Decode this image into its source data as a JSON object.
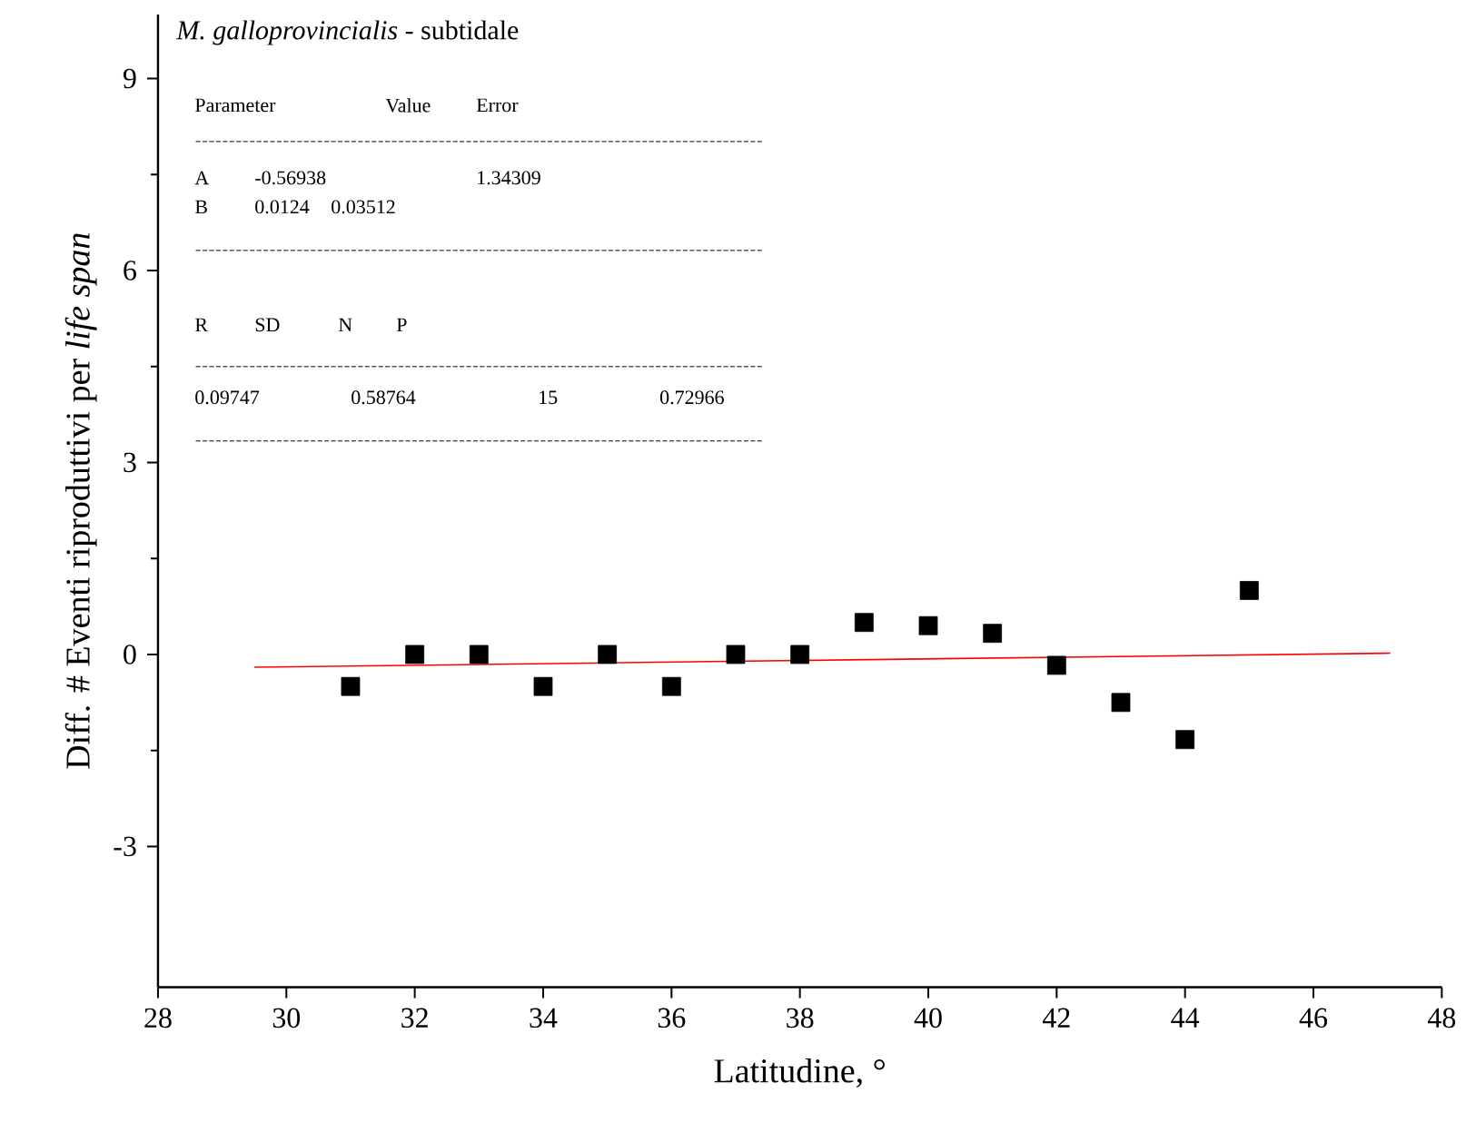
{
  "chart_data": {
    "type": "scatter",
    "title": "*M. galloprovincialis* - subtidale",
    "xlabel": "Latitudine, °",
    "ylabel": "Diff. # Eventi riproduttivi per *life span*",
    "annotations": [
      "Parameter",
      "Value",
      "Error",
      "A",
      "-0.56938",
      "1.34309",
      "B",
      "0.0124",
      "0.03512",
      "R",
      "SD",
      "N",
      "P",
      "0.09747",
      "0.58764",
      "15",
      "0.72966"
    ],
    "xlim": [
      28,
      48
    ],
    "ylim": [
      -5.2,
      10
    ],
    "xticks": [
      28,
      30,
      32,
      34,
      36,
      38,
      40,
      42,
      44,
      46,
      48
    ],
    "yticks": [
      -3,
      0,
      3,
      6,
      9
    ],
    "grid": false,
    "legend": false,
    "marker": "square",
    "series": [
      {
        "type": "scatter",
        "color": "#000000",
        "x": [
          31,
          32,
          33,
          34,
          35,
          36,
          37,
          38,
          39,
          40,
          41,
          42,
          43,
          44,
          45
        ],
        "values": [
          -0.5,
          0,
          0,
          -0.5,
          0,
          -0.5,
          0,
          0,
          0.5,
          0.45,
          0.33,
          -0.17,
          -0.75,
          -1.33,
          1.0
        ]
      },
      {
        "type": "line",
        "color": "#ff0000",
        "marker": "none",
        "x": [
          29.5,
          47.2
        ],
        "values": [
          -0.2,
          0.02
        ]
      }
    ]
  }
}
